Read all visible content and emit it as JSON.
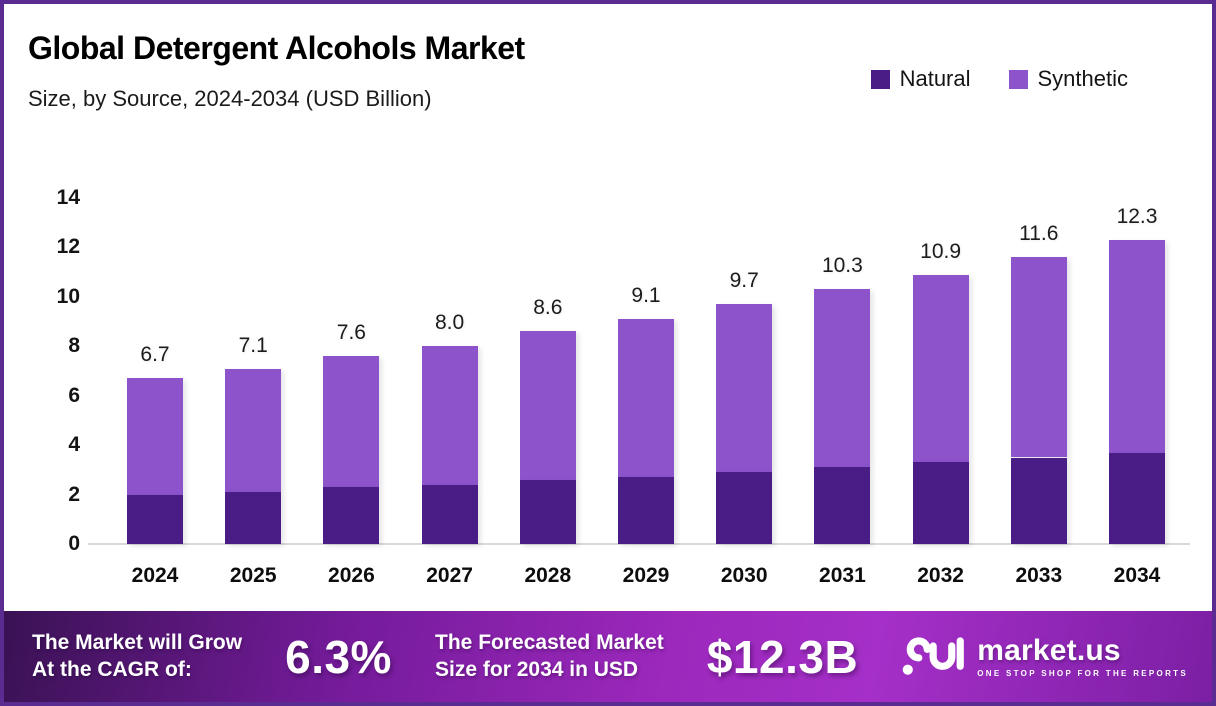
{
  "header": {
    "title": "Global Detergent Alcohols Market",
    "subtitle": "Size, by Source, 2024-2034 (USD Billion)"
  },
  "legend": [
    {
      "label": "Natural",
      "color": "#4a1c86"
    },
    {
      "label": "Synthetic",
      "color": "#8c53cb"
    }
  ],
  "colors": {
    "natural": "#4a1c86",
    "synthetic": "#8c53cb",
    "frame_border": "#5a2b90",
    "banner_gradient_start": "#3a1254",
    "banner_gradient_mid": "#a52fc8",
    "banner_gradient_end": "#7c1fa4",
    "axis_line": "#d9d9d9"
  },
  "chart_data": {
    "type": "bar",
    "stacked": true,
    "title": "Global Detergent Alcohols Market Size, by Source, 2024-2034 (USD Billion)",
    "xlabel": "",
    "ylabel": "USD Billion",
    "ylim": [
      0,
      14
    ],
    "yticks": [
      0,
      2,
      4,
      6,
      8,
      10,
      12,
      14
    ],
    "grid": false,
    "legend_position": "top-right",
    "categories": [
      "2024",
      "2025",
      "2026",
      "2027",
      "2028",
      "2029",
      "2030",
      "2031",
      "2032",
      "2033",
      "2034"
    ],
    "series": [
      {
        "name": "Natural",
        "color": "#4a1c86",
        "values": [
          2.0,
          2.1,
          2.3,
          2.4,
          2.6,
          2.7,
          2.9,
          3.1,
          3.3,
          3.5,
          3.7
        ]
      },
      {
        "name": "Synthetic",
        "color": "#8c53cb",
        "values": [
          4.7,
          5.0,
          5.3,
          5.6,
          6.0,
          6.4,
          6.8,
          7.2,
          7.6,
          8.1,
          8.6
        ]
      }
    ],
    "totals": [
      6.7,
      7.1,
      7.6,
      8.0,
      8.6,
      9.1,
      9.7,
      10.3,
      10.9,
      11.6,
      12.3
    ],
    "total_labels": [
      "6.7",
      "7.1",
      "7.6",
      "8.0",
      "8.6",
      "9.1",
      "9.7",
      "10.3",
      "10.9",
      "11.6",
      "12.3"
    ]
  },
  "footer": {
    "cagr_line1": "The Market will Grow",
    "cagr_line2": "At the CAGR of:",
    "cagr_value": "6.3%",
    "forecast_line1": "The Forecasted Market",
    "forecast_line2": "Size for 2034 in USD",
    "forecast_value": "$12.3B",
    "brand": "market.us",
    "brand_tagline": "ONE STOP SHOP FOR THE REPORTS"
  }
}
